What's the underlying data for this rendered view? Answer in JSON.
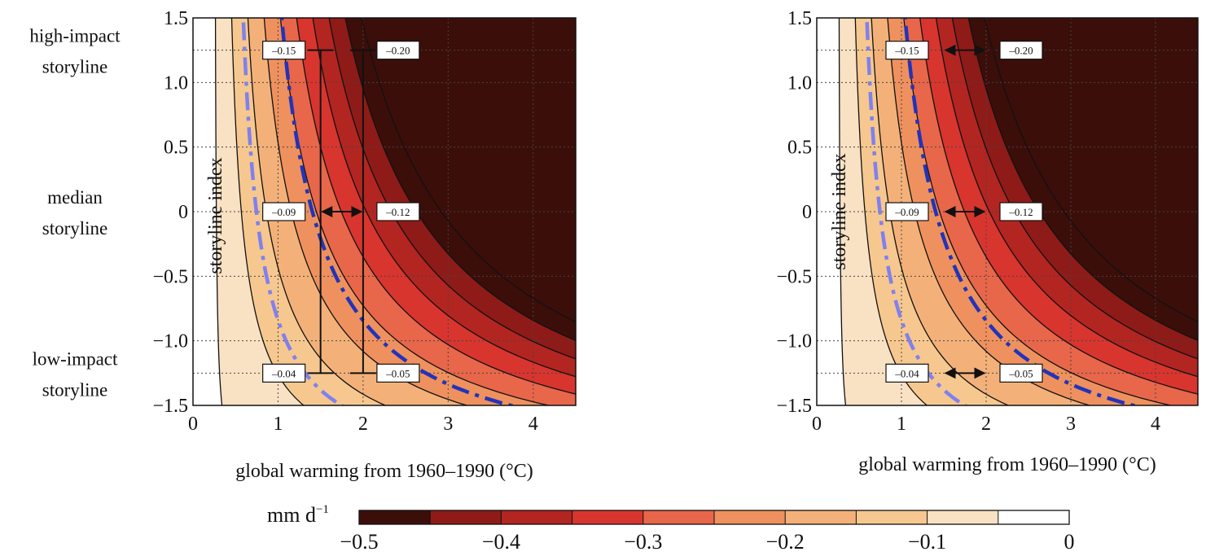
{
  "chart_data": [
    {
      "type": "contour",
      "panel": "left",
      "xlabel": "global warming from 1960–1990 (°C)",
      "ylabel": "storyline index",
      "xlim": [
        0,
        4.5
      ],
      "ylim": [
        -1.5,
        1.5
      ],
      "xticks": [
        "0",
        "1",
        "2",
        "3",
        "4"
      ],
      "yticks": [
        "1.5",
        "1.0",
        "0.5",
        "0",
        "−0.5",
        "−1.0",
        "−1.5"
      ],
      "contour_levels": [
        -0.05,
        -0.1,
        -0.15,
        -0.2,
        -0.25,
        -0.3,
        -0.35,
        -0.4,
        -0.45
      ],
      "storyline_labels": [
        {
          "text": "high-impact\nstoryline",
          "y": 1.25
        },
        {
          "text": "median\nstoryline",
          "y": 0
        },
        {
          "text": "low-impact\nstoryline",
          "y": -1.25
        }
      ],
      "annotations": [
        {
          "text": "–0.15",
          "x": 1.5,
          "y": 1.25
        },
        {
          "text": "–0.20",
          "x": 2.0,
          "y": 1.25
        },
        {
          "text": "–0.09",
          "x": 1.5,
          "y": 0
        },
        {
          "text": "–0.12",
          "x": 2.0,
          "y": 0
        },
        {
          "text": "–0.04",
          "x": 1.5,
          "y": -1.25
        },
        {
          "text": "–0.05",
          "x": 2.0,
          "y": -1.25
        }
      ],
      "vertical_bars_x": [
        1.5,
        2.0
      ],
      "horizontal_arrow_y": 0,
      "dashed_curves": [
        "light-blue",
        "dark-blue"
      ]
    },
    {
      "type": "contour",
      "panel": "right",
      "xlabel": "global warming from 1960–1990 (°C)",
      "ylabel": "storyline index",
      "xlim": [
        0,
        4.5
      ],
      "ylim": [
        -1.5,
        1.5
      ],
      "xticks": [
        "0",
        "1",
        "2",
        "3",
        "4"
      ],
      "yticks": [
        "1.5",
        "1.0",
        "0.5",
        "0",
        "−0.5",
        "−1.0",
        "−1.5"
      ],
      "contour_levels": [
        -0.05,
        -0.1,
        -0.15,
        -0.2,
        -0.25,
        -0.3,
        -0.35,
        -0.4,
        -0.45
      ],
      "annotations": [
        {
          "text": "–0.15",
          "x": 1.5,
          "y": 1.25
        },
        {
          "text": "–0.20",
          "x": 2.0,
          "y": 1.25
        },
        {
          "text": "–0.09",
          "x": 1.5,
          "y": 0
        },
        {
          "text": "–0.12",
          "x": 2.0,
          "y": 0
        },
        {
          "text": "–0.04",
          "x": 1.5,
          "y": -1.25
        },
        {
          "text": "–0.05",
          "x": 2.0,
          "y": -1.25
        }
      ],
      "horizontal_arrows_y": [
        1.25,
        0,
        -1.25
      ],
      "dashed_curves": [
        "light-blue",
        "dark-blue"
      ]
    }
  ],
  "colorbar": {
    "unit": "mm d",
    "unit_sup": "−1",
    "ticks": [
      "−0.5",
      "−0.4",
      "−0.3",
      "−0.2",
      "−0.1",
      "0"
    ],
    "colors": [
      "#3b0e0a",
      "#8e1b18",
      "#b32521",
      "#d8352e",
      "#e8664a",
      "#ef915e",
      "#f3b179",
      "#f6c88f",
      "#f9e1c4",
      "#ffffff"
    ]
  },
  "colors": {
    "dark_blue_dash": "#2233bb",
    "light_blue_dash": "#8080ee"
  }
}
